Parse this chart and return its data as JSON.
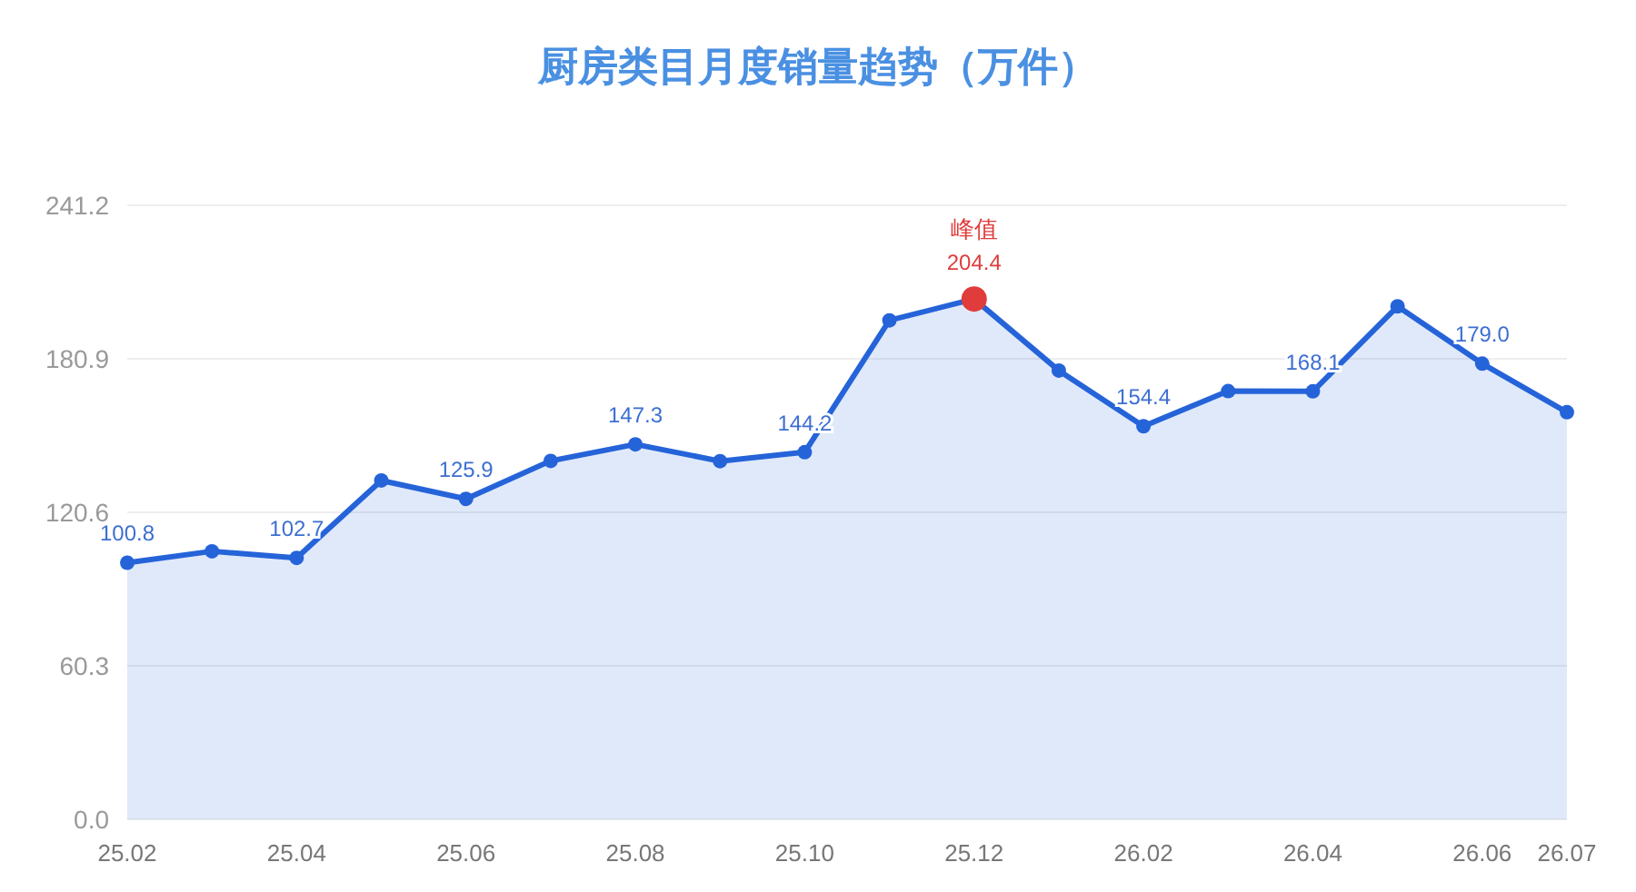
{
  "chart_data": {
    "type": "area",
    "title": "厨房类目月度销量趋势（万件）",
    "categories": [
      "25.02",
      null,
      "25.04",
      null,
      "25.06",
      null,
      "25.08",
      null,
      "25.10",
      null,
      "25.12",
      null,
      "26.02",
      null,
      "26.04",
      null,
      "26.06",
      "26.07"
    ],
    "series": [
      {
        "color": "#2563d9",
        "values": [
          100.8,
          105.3,
          102.7,
          133.1,
          125.9,
          140.8,
          147.3,
          140.7,
          144.2,
          196.0,
          204.4,
          176.3,
          154.4,
          168.2,
          168.1,
          201.5,
          179.0,
          159.9
        ],
        "value_labels": [
          "100.8",
          null,
          "102.7",
          null,
          "125.9",
          null,
          "147.3",
          null,
          "144.2",
          null,
          null,
          null,
          "154.4",
          null,
          "168.1",
          null,
          "179.0",
          null
        ]
      },
      {
        "type": "scatter",
        "color": "#e03c3c",
        "x": [
          "25.12"
        ],
        "values": [
          204.4
        ],
        "value_labels": [
          "204.4"
        ]
      }
    ],
    "ylim": [
      0,
      241.2
    ],
    "yticks": [
      {
        "value": 0,
        "label": "0.0"
      },
      60.3,
      120.6,
      180.9,
      241.2
    ],
    "grid": "y",
    "marker": "circle",
    "annotations": [
      {
        "text": "峰值",
        "x": "25.12",
        "y": 204.4
      }
    ]
  }
}
